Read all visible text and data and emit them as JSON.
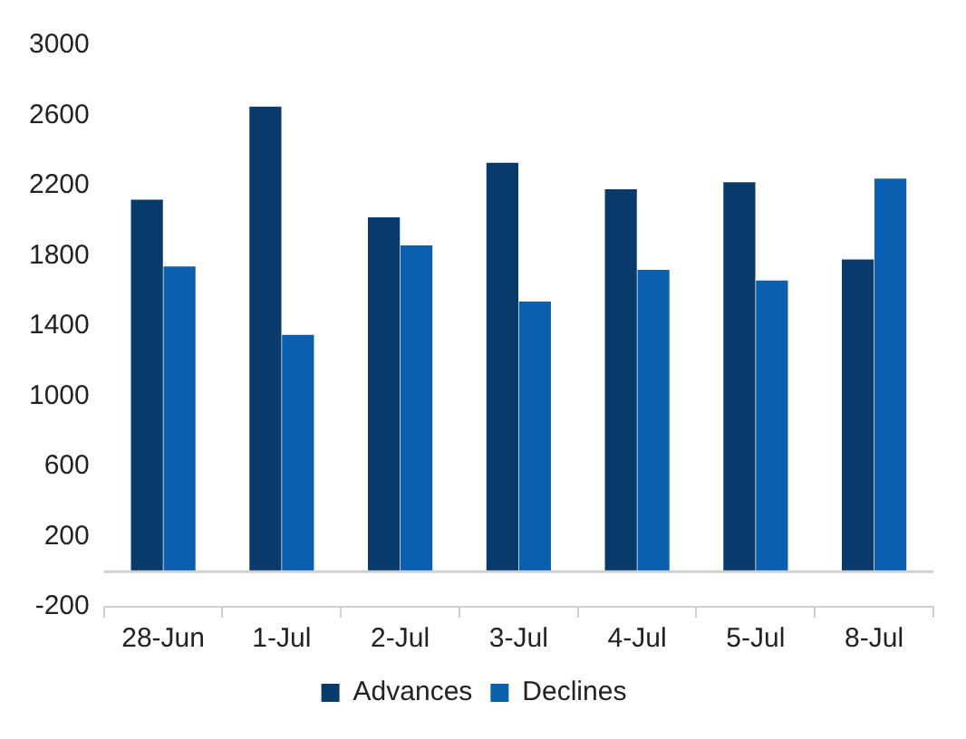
{
  "chart_data": {
    "type": "bar",
    "categories": [
      "28-Jun",
      "1-Jul",
      "2-Jul",
      "3-Jul",
      "4-Jul",
      "5-Jul",
      "8-Jul"
    ],
    "series": [
      {
        "name": "Advances",
        "color": "#083a6b",
        "values": [
          2120,
          2650,
          2020,
          2330,
          2180,
          2220,
          1780
        ]
      },
      {
        "name": "Declines",
        "color": "#0a5fb0",
        "values": [
          1740,
          1350,
          1860,
          1540,
          1720,
          1660,
          2240
        ]
      }
    ],
    "ylim": [
      -200,
      3000
    ],
    "yticks": [
      -200,
      200,
      600,
      1000,
      1400,
      1800,
      2200,
      2600,
      3000
    ],
    "grid": false,
    "legend": "bottom"
  }
}
